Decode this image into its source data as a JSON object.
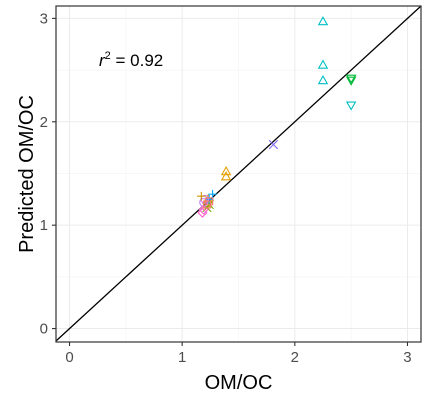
{
  "chart_data": {
    "type": "scatter",
    "xlabel": "OM/OC",
    "ylabel": "Predicted OM/OC",
    "xlim": [
      -0.12,
      3.12
    ],
    "ylim": [
      -0.13,
      3.12
    ],
    "xticks": [
      "0",
      "1",
      "2",
      "3"
    ],
    "yticks": [
      "0",
      "1",
      "2",
      "3"
    ],
    "grid": true,
    "annotation": {
      "r_symbol": "r",
      "r_exp": "2",
      "text": " = 0.92"
    },
    "reference_line": {
      "type": "identity",
      "slope": 1,
      "intercept": 0,
      "color": "#000000"
    },
    "series": [
      {
        "shape": "triangle-up-open",
        "color": "#E69F00",
        "points": [
          [
            1.39,
            1.52
          ],
          [
            1.39,
            1.47
          ],
          [
            1.23,
            1.25
          ],
          [
            1.22,
            1.21
          ]
        ]
      },
      {
        "shape": "cross-open",
        "color": "#7CAE00",
        "points": [
          [
            1.22,
            1.17
          ],
          [
            1.24,
            1.2
          ]
        ]
      },
      {
        "shape": "triangle-up-open",
        "color": "#00BFC4",
        "points": [
          [
            2.25,
            2.97
          ],
          [
            2.25,
            2.55
          ],
          [
            2.25,
            2.4
          ]
        ]
      },
      {
        "shape": "triangle-down-open",
        "color": "#00BA38",
        "points": [
          [
            2.5,
            2.42
          ],
          [
            2.5,
            2.4
          ]
        ]
      },
      {
        "shape": "triangle-down-open",
        "color": "#00BFC4",
        "points": [
          [
            2.5,
            2.16
          ]
        ]
      },
      {
        "shape": "plus",
        "color": "#00A9FF",
        "points": [
          [
            1.27,
            1.3
          ],
          [
            1.24,
            1.25
          ]
        ]
      },
      {
        "shape": "cross-open",
        "color": "#7B68EE",
        "points": [
          [
            1.81,
            1.78
          ]
        ]
      },
      {
        "shape": "diamond-open",
        "color": "#FF61CC",
        "points": [
          [
            1.18,
            1.12
          ],
          [
            1.19,
            1.15
          ]
        ]
      },
      {
        "shape": "circle-open",
        "color": "#C77CFF",
        "points": [
          [
            1.19,
            1.22
          ],
          [
            1.2,
            1.25
          ]
        ]
      },
      {
        "shape": "square-open",
        "color": "#F8766D",
        "points": [
          [
            1.24,
            1.23
          ],
          [
            1.22,
            1.2
          ]
        ]
      },
      {
        "shape": "plus",
        "color": "#CD9600",
        "points": [
          [
            1.17,
            1.28
          ]
        ]
      }
    ]
  }
}
